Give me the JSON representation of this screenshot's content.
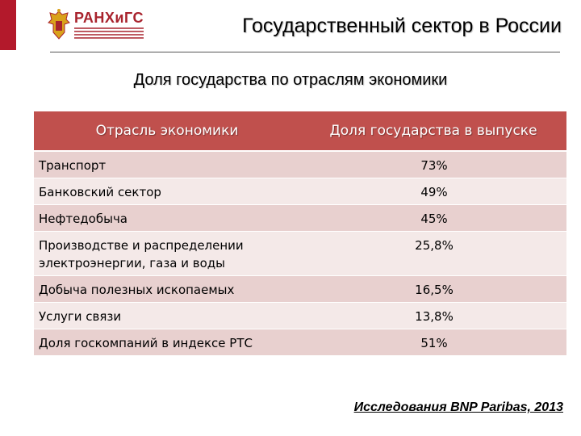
{
  "header": {
    "logo_text": "РАНХиГС",
    "title": "Государственный сектор в России"
  },
  "subtitle": "Доля государства по отраслям экономики",
  "table": {
    "columns": [
      "Отрасль экономики",
      "Доля государства в выпуске"
    ],
    "rows": [
      {
        "sector": "Транспорт",
        "share": "73%"
      },
      {
        "sector": "Банковский сектор",
        "share": "49%"
      },
      {
        "sector": "Нефтедобыча",
        "share": "45%"
      },
      {
        "sector": "Производстве и распределении электроэнергии, газа и воды",
        "share": "25,8%"
      },
      {
        "sector": "Добыча полезных ископаемых",
        "share": "16,5%"
      },
      {
        "sector": "Услуги связи",
        "share": "13,8%"
      },
      {
        "sector": "Доля госкомпаний в индексе РТС",
        "share": "51%"
      }
    ]
  },
  "source": "Исследования BNP Paribas, 2013",
  "colors": {
    "accent": "#b3192b",
    "header_fill": "#c0504d",
    "row_odd": "#e8d0cf",
    "row_even": "#f4e9e8"
  }
}
